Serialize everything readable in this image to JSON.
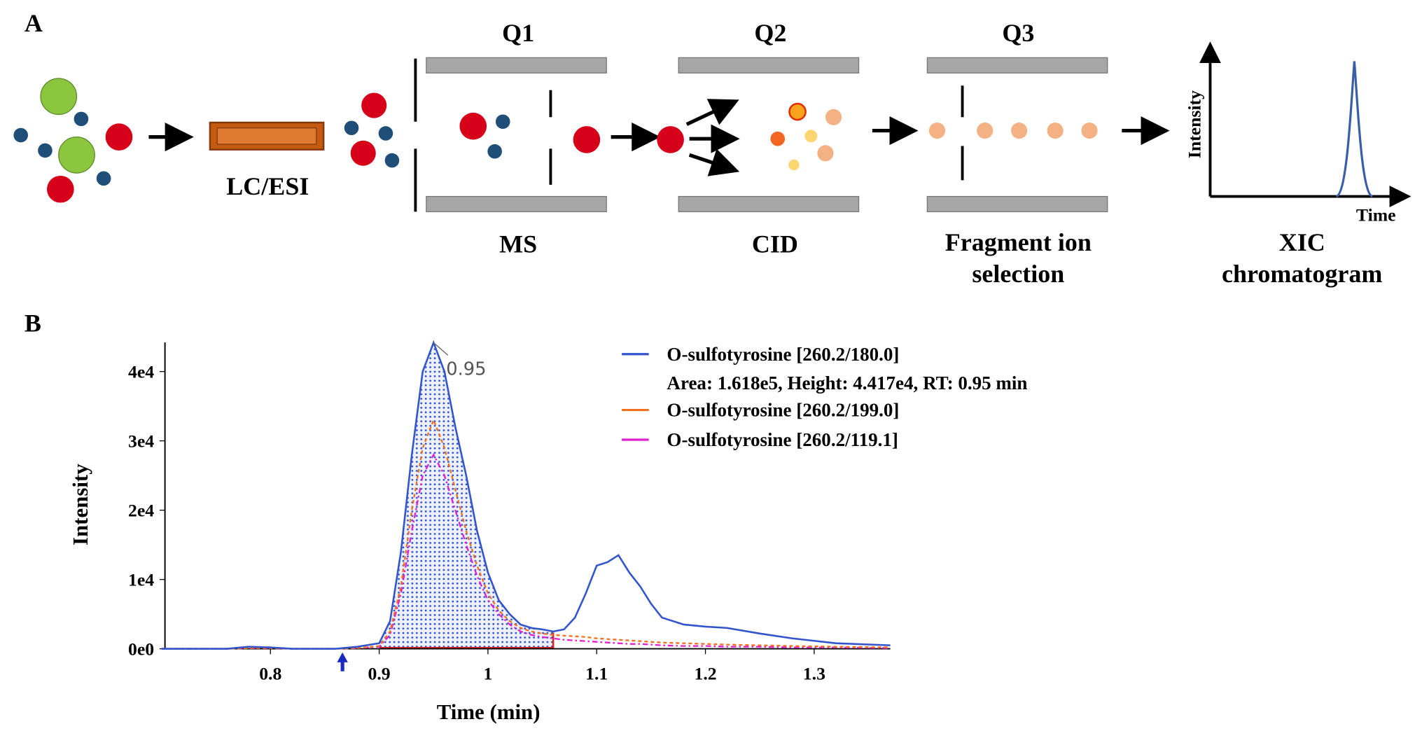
{
  "panel_a": {
    "label": "A",
    "q1": "Q1",
    "q2": "Q2",
    "q3": "Q3",
    "lc": "LC/ESI",
    "ms": "MS",
    "cid": "CID",
    "fragment_1": "Fragment ion",
    "fragment_2": "selection",
    "xic_1": "XIC",
    "xic_2": "chromatogram",
    "mini_y": "Intensity",
    "mini_x": "Time"
  },
  "chart_data": {
    "type": "line",
    "panel_label": "B",
    "xlabel": "Time (min)",
    "ylabel": "Intensity",
    "subtitle": "Area: 1.618e5, Height: 4.417e4, RT: 0.95 min",
    "annotation": "0.95",
    "x": [
      0.7,
      0.76,
      0.78,
      0.8,
      0.82,
      0.86,
      0.88,
      0.9,
      0.91,
      0.92,
      0.93,
      0.94,
      0.95,
      0.96,
      0.97,
      0.98,
      0.99,
      1.0,
      1.01,
      1.02,
      1.03,
      1.04,
      1.05,
      1.06,
      1.07,
      1.08,
      1.09,
      1.1,
      1.11,
      1.12,
      1.13,
      1.14,
      1.15,
      1.16,
      1.18,
      1.2,
      1.22,
      1.25,
      1.28,
      1.32,
      1.37
    ],
    "series": [
      {
        "name": "O-sulfotyrosine [260.2/180.0]",
        "color": "#3355cc",
        "values": [
          0,
          0,
          300,
          200,
          0,
          0,
          300,
          800,
          4000,
          14000,
          28000,
          40000,
          44170,
          40000,
          32000,
          25000,
          17000,
          11000,
          7000,
          5000,
          3500,
          3000,
          2800,
          2500,
          2800,
          4500,
          8000,
          12000,
          12500,
          13500,
          11000,
          9000,
          6500,
          4500,
          3500,
          3200,
          3000,
          2200,
          1500,
          800,
          500
        ]
      },
      {
        "name": "O-sulfotyrosine [260.2/199.0]",
        "color": "#f07020",
        "values": [
          0,
          0,
          100,
          100,
          0,
          0,
          100,
          400,
          2500,
          9000,
          20000,
          29000,
          33000,
          29000,
          23000,
          17000,
          12000,
          8000,
          5500,
          4000,
          3000,
          2500,
          2200,
          2000,
          1900,
          1800,
          1700,
          1500,
          1400,
          1300,
          1200,
          1100,
          1000,
          900,
          800,
          700,
          600,
          500,
          400,
          300,
          200
        ]
      },
      {
        "name": "O-sulfotyrosine [260.2/119.1]",
        "color": "#e020d0",
        "values": [
          0,
          0,
          100,
          100,
          0,
          0,
          100,
          300,
          2000,
          8000,
          17000,
          25000,
          28000,
          25000,
          20000,
          15000,
          10500,
          7000,
          5000,
          3500,
          2500,
          2000,
          1700,
          1500,
          1300,
          1200,
          1100,
          1000,
          900,
          800,
          700,
          700,
          600,
          500,
          400,
          400,
          300,
          300,
          200,
          200,
          100
        ]
      }
    ],
    "integration": {
      "start": 0.9,
      "end": 1.06
    },
    "xlim": [
      0.703,
      1.37
    ],
    "xticks": [
      0.8,
      0.9,
      1.0,
      1.1,
      1.2,
      1.3
    ],
    "ylim": [
      0,
      44200
    ],
    "yticks": [
      {
        "value": 0,
        "label": "0e0"
      },
      {
        "value": 10000,
        "label": "1e4"
      },
      {
        "value": 20000,
        "label": "2e4"
      },
      {
        "value": 30000,
        "label": "3e4"
      },
      {
        "value": 40000,
        "label": "4e4"
      }
    ]
  }
}
